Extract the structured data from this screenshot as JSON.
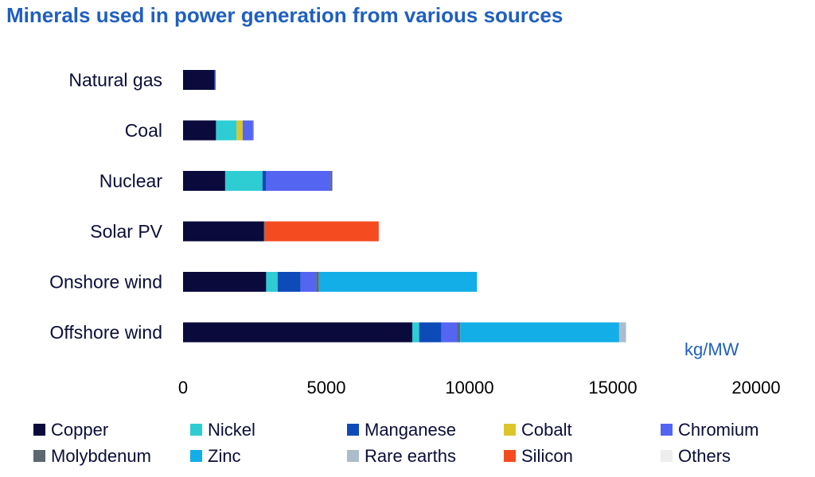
{
  "chart_data": {
    "type": "bar",
    "orientation": "horizontal",
    "stacked": true,
    "title": "Minerals used in power generation from various sources",
    "unit_label": "kg/MW",
    "categories": [
      "Natural gas",
      "Coal",
      "Nuclear",
      "Solar PV",
      "Onshore wind",
      "Offshore wind"
    ],
    "xlim": [
      0,
      20000
    ],
    "xticks": [
      "0",
      "5000",
      "10000",
      "15000",
      "20000"
    ],
    "grid": false,
    "legend_position": "bottom",
    "series": [
      {
        "name": "Copper",
        "color": "#0b0a3d",
        "values": [
          1100,
          1150,
          1470,
          2820,
          2900,
          8000
        ]
      },
      {
        "name": "Nickel",
        "color": "#2dcdd3",
        "values": [
          0,
          720,
          1300,
          0,
          400,
          240
        ]
      },
      {
        "name": "Manganese",
        "color": "#0d4bb8",
        "values": [
          0,
          0,
          130,
          0,
          800,
          780
        ]
      },
      {
        "name": "Cobalt",
        "color": "#dcc52a",
        "values": [
          0,
          210,
          0,
          0,
          0,
          0
        ]
      },
      {
        "name": "Chromium",
        "color": "#5465f2",
        "values": [
          40,
          360,
          2250,
          0,
          550,
          550
        ]
      },
      {
        "name": "Molybdenum",
        "color": "#5c6770",
        "values": [
          0,
          20,
          60,
          30,
          90,
          100
        ]
      },
      {
        "name": "Zinc",
        "color": "#13aee8",
        "values": [
          0,
          0,
          0,
          0,
          5520,
          5550
        ]
      },
      {
        "name": "Rare earths",
        "color": "#acbccb",
        "values": [
          0,
          0,
          0,
          0,
          0,
          240
        ]
      },
      {
        "name": "Silicon",
        "color": "#f54b20",
        "values": [
          0,
          0,
          0,
          3980,
          0,
          0
        ]
      },
      {
        "name": "Others",
        "color": "#eeeeee",
        "values": [
          0,
          0,
          0,
          0,
          0,
          0
        ]
      }
    ]
  }
}
